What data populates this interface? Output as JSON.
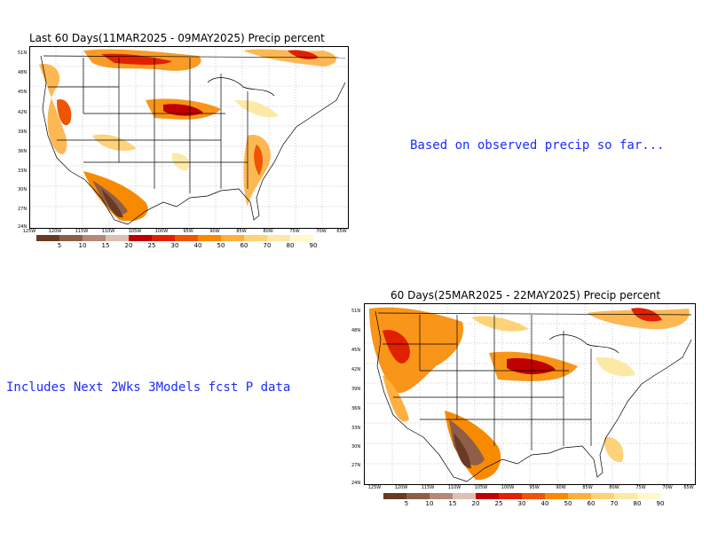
{
  "map1": {
    "title": "Last 60 Days(11MAR2025 - 09MAY2025) Precip percent",
    "lat_labels": [
      "51N",
      "48N",
      "45N",
      "42N",
      "39N",
      "36N",
      "33N",
      "30N",
      "27N",
      "24N"
    ],
    "lon_labels": [
      "125W",
      "120W",
      "115W",
      "110W",
      "105W",
      "100W",
      "95W",
      "90W",
      "85W",
      "80W",
      "75W",
      "70W",
      "65W"
    ]
  },
  "map2": {
    "title": "60 Days(25MAR2025 - 22MAY2025) Precip percent",
    "lat_labels": [
      "51N",
      "48N",
      "45N",
      "42N",
      "39N",
      "36N",
      "33N",
      "30N",
      "27N",
      "24N"
    ],
    "lon_labels": [
      "125W",
      "120W",
      "115W",
      "110W",
      "105W",
      "100W",
      "95W",
      "90W",
      "85W",
      "80W",
      "75W",
      "70W",
      "65W"
    ]
  },
  "colorbar": {
    "colors": [
      "#6b3a24",
      "#8e5e48",
      "#b48978",
      "#dcc0b4",
      "#c00000",
      "#e02000",
      "#ee5500",
      "#f88a00",
      "#fdb040",
      "#fdd278",
      "#fde9a6",
      "#fff8cc"
    ],
    "labels": [
      "5",
      "10",
      "15",
      "20",
      "25",
      "30",
      "40",
      "50",
      "60",
      "70",
      "80",
      "90"
    ]
  },
  "notes": {
    "observed": "Based on observed precip so far...",
    "forecast": "Includes Next 2Wks 3Models fcst P data"
  }
}
